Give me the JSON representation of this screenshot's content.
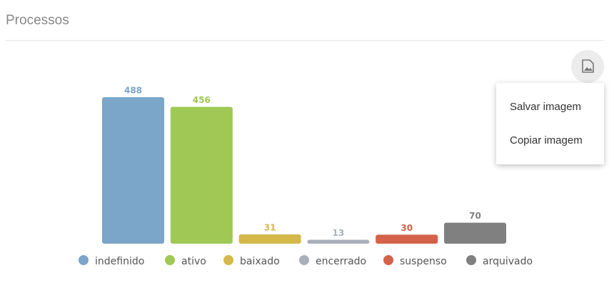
{
  "chart_data": {
    "type": "bar",
    "title": "Processos",
    "categories": [
      "indefinido",
      "ativo",
      "baixado",
      "encerrado",
      "suspenso",
      "arquivado"
    ],
    "values": [
      488,
      456,
      31,
      13,
      30,
      70
    ],
    "colors": [
      "#7ba5c9",
      "#9fc954",
      "#d4b84a",
      "#aab0bb",
      "#d4624a",
      "#808080"
    ],
    "legend": "bottom"
  },
  "menu": {
    "items": [
      "Salvar imagem",
      "Copiar imagem"
    ]
  }
}
